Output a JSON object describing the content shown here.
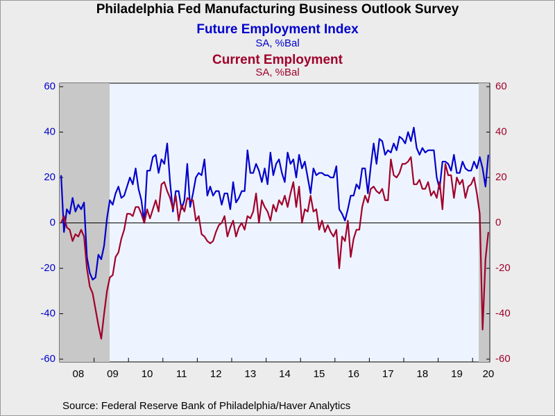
{
  "chart_data": {
    "type": "line",
    "title": "Philadelphia Fed Manufacturing Business Outlook Survey",
    "source": "Source:  Federal Reserve Bank of Philadelphia/Haver Analytics",
    "categories": [
      null,
      null,
      null,
      null,
      null,
      null,
      "08",
      null,
      null,
      null,
      null,
      null,
      null,
      null,
      null,
      null,
      null,
      null,
      "09",
      null,
      null,
      null,
      null,
      null,
      null,
      null,
      null,
      null,
      null,
      null,
      "10",
      null,
      null,
      null,
      null,
      null,
      null,
      null,
      null,
      null,
      null,
      null,
      "11",
      null,
      null,
      null,
      null,
      null,
      null,
      null,
      null,
      null,
      null,
      null,
      "12",
      null,
      null,
      null,
      null,
      null,
      null,
      null,
      null,
      null,
      null,
      null,
      "13",
      null,
      null,
      null,
      null,
      null,
      null,
      null,
      null,
      null,
      null,
      null,
      "14",
      null,
      null,
      null,
      null,
      null,
      null,
      null,
      null,
      null,
      null,
      null,
      "15",
      null,
      null,
      null,
      null,
      null,
      null,
      null,
      null,
      null,
      null,
      null,
      "16",
      null,
      null,
      null,
      null,
      null,
      null,
      null,
      null,
      null,
      null,
      null,
      "17",
      null,
      null,
      null,
      null,
      null,
      null,
      null,
      null,
      null,
      null,
      null,
      "18",
      null,
      null,
      null,
      null,
      null,
      null,
      null,
      null,
      null,
      null,
      null,
      "19",
      null,
      null,
      null,
      null,
      null,
      null,
      null,
      null,
      null,
      null,
      "20"
    ],
    "series": [
      {
        "name": "Future Employment Index",
        "unit": "SA, %Bal",
        "color": "#0000cc",
        "axis": "y",
        "values": [
          21,
          -4,
          6,
          4,
          11,
          5,
          8,
          6,
          9,
          -15,
          -22,
          -25,
          -24,
          -14,
          -16,
          -10,
          2,
          10,
          8,
          13,
          16,
          11,
          12,
          16,
          20,
          17,
          24,
          15,
          10,
          0,
          23,
          23,
          29,
          30,
          22,
          28,
          26,
          35,
          18,
          5,
          14,
          14,
          6,
          10,
          26,
          7,
          13,
          20,
          22,
          21,
          28,
          12,
          16,
          12,
          14,
          14,
          8,
          13,
          13,
          6,
          18,
          9,
          11,
          14,
          14,
          32,
          22,
          22,
          26,
          23,
          18,
          24,
          17,
          31,
          21,
          26,
          28,
          22,
          18,
          31,
          26,
          28,
          20,
          30,
          24,
          27,
          20,
          13,
          24,
          21,
          22,
          22,
          21,
          21,
          20,
          20,
          25,
          6,
          4,
          1,
          6,
          12,
          12,
          17,
          15,
          24,
          24,
          13,
          25,
          35,
          26,
          37,
          36,
          30,
          32,
          31,
          35,
          32,
          38,
          37,
          35,
          40,
          36,
          42,
          33,
          30,
          33,
          31,
          32,
          32,
          32,
          20,
          15,
          27,
          27,
          26,
          23,
          30,
          22,
          22,
          27,
          24,
          23,
          23,
          27,
          24,
          29,
          24,
          16,
          30
        ]
      },
      {
        "name": "Current Employment",
        "unit": "SA, %Bal",
        "color": "#a0002a",
        "axis": "y2",
        "values": [
          0,
          3,
          -2,
          -3,
          -8,
          -5,
          -6,
          -3,
          -6,
          -20,
          -28,
          -31,
          -38,
          -45,
          -51,
          -40,
          -30,
          -24,
          -23,
          -15,
          -13,
          -7,
          -3,
          4,
          4,
          3,
          7,
          7,
          4,
          0,
          6,
          2,
          6,
          10,
          5,
          17,
          18,
          14,
          11,
          6,
          12,
          1,
          8,
          5,
          11,
          10,
          10,
          1,
          3,
          -5,
          -6,
          -8,
          -9,
          -8,
          -4,
          -1,
          0,
          3,
          -6,
          -2,
          1,
          -6,
          -2,
          0,
          -3,
          3,
          2,
          5,
          13,
          0,
          10,
          7,
          5,
          1,
          8,
          5,
          10,
          8,
          12,
          7,
          13,
          18,
          7,
          16,
          0,
          6,
          5,
          12,
          5,
          6,
          -3,
          1,
          -4,
          -1,
          -4,
          -6,
          -3,
          -20,
          -6,
          -8,
          1,
          -15,
          -7,
          -3,
          -3,
          7,
          12,
          9,
          15,
          16,
          14,
          13,
          15,
          10,
          10,
          28,
          21,
          20,
          22,
          26,
          26,
          27,
          29,
          17,
          17,
          19,
          15,
          15,
          18,
          12,
          14,
          11,
          18,
          6,
          26,
          21,
          21,
          11,
          20,
          17,
          19,
          11,
          16,
          17,
          20,
          13,
          4,
          -47,
          -16,
          -4
        ]
      }
    ],
    "ylim": [
      -60,
      60
    ],
    "yticks": [
      -60,
      -40,
      -20,
      0,
      20,
      40,
      60
    ],
    "y2lim": [
      -60,
      60
    ],
    "y2ticks": [
      -60,
      -40,
      -20,
      0,
      20,
      40,
      60
    ],
    "zero_line": true
  }
}
